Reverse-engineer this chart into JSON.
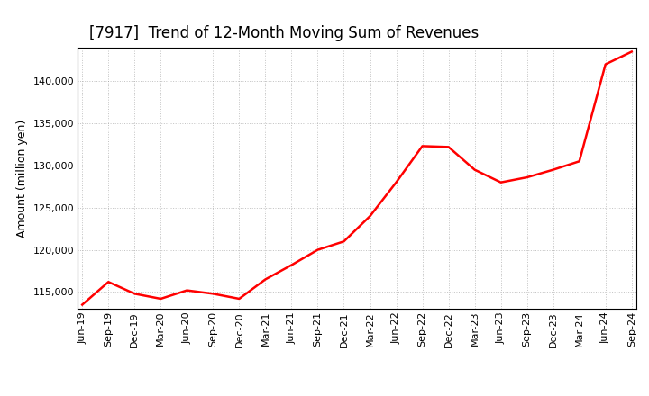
{
  "title": "[7917]  Trend of 12-Month Moving Sum of Revenues",
  "ylabel": "Amount (million yen)",
  "line_color": "#ff0000",
  "background_color": "#ffffff",
  "plot_bg_color": "#ffffff",
  "grid_color": "#999999",
  "x_labels": [
    "Jun-19",
    "Sep-19",
    "Dec-19",
    "Mar-20",
    "Jun-20",
    "Sep-20",
    "Dec-20",
    "Mar-21",
    "Jun-21",
    "Sep-21",
    "Dec-21",
    "Mar-22",
    "Jun-22",
    "Sep-22",
    "Dec-22",
    "Mar-23",
    "Jun-23",
    "Sep-23",
    "Dec-23",
    "Mar-24",
    "Jun-24",
    "Sep-24"
  ],
  "x_values": [
    0,
    3,
    6,
    9,
    12,
    15,
    18,
    21,
    24,
    27,
    30,
    33,
    36,
    39,
    42,
    45,
    48,
    51,
    54,
    57,
    60,
    63
  ],
  "y_values": [
    113500,
    116200,
    114800,
    114200,
    115200,
    114800,
    114200,
    116500,
    118200,
    120000,
    121000,
    124000,
    128000,
    132300,
    132200,
    129500,
    128000,
    128600,
    129500,
    130500,
    142000,
    143500
  ],
  "ylim_min": 113000,
  "ylim_max": 144000,
  "yticks": [
    115000,
    120000,
    125000,
    130000,
    135000,
    140000
  ],
  "line_width": 1.8,
  "title_fontsize": 12,
  "tick_fontsize": 8,
  "label_fontsize": 9
}
